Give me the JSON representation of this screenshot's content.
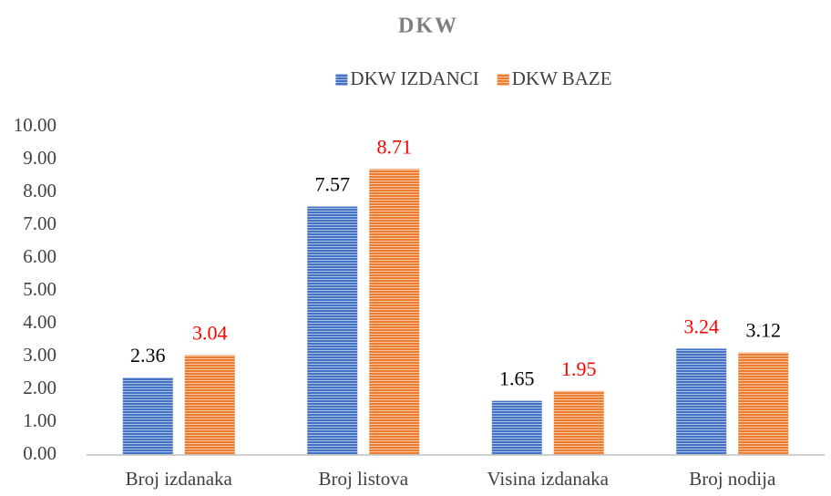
{
  "chart_data": {
    "type": "bar",
    "title": "DKW",
    "categories": [
      "Broj izdanaka",
      "Broj listova",
      "Visina izdanaka",
      "Broj nodija"
    ],
    "series": [
      {
        "name": "DKW IZDANCI",
        "color": "#4472c4",
        "values": [
          2.36,
          7.57,
          1.65,
          3.24
        ],
        "label_colors": [
          "#000000",
          "#000000",
          "#000000",
          "#ff0000"
        ]
      },
      {
        "name": "DKW BAZE",
        "color": "#ed7d31",
        "values": [
          3.04,
          8.71,
          1.95,
          3.12
        ],
        "label_colors": [
          "#ff0000",
          "#ff0000",
          "#ff0000",
          "#000000"
        ]
      }
    ],
    "ylim": [
      0,
      10
    ],
    "yticks": [
      {
        "value": 0,
        "label": "0.00"
      },
      {
        "value": 1,
        "label": "1.00"
      },
      {
        "value": 2,
        "label": "2.00"
      },
      {
        "value": 3,
        "label": "3.00"
      },
      {
        "value": 4,
        "label": "4.00"
      },
      {
        "value": 5,
        "label": "5.00"
      },
      {
        "value": 6,
        "label": "6.00"
      },
      {
        "value": 7,
        "label": "7.00"
      },
      {
        "value": 8,
        "label": "8.00"
      },
      {
        "value": 9,
        "label": "9.00"
      },
      {
        "value": 10,
        "label": "10.00"
      }
    ],
    "grid": false,
    "legend": "top"
  }
}
